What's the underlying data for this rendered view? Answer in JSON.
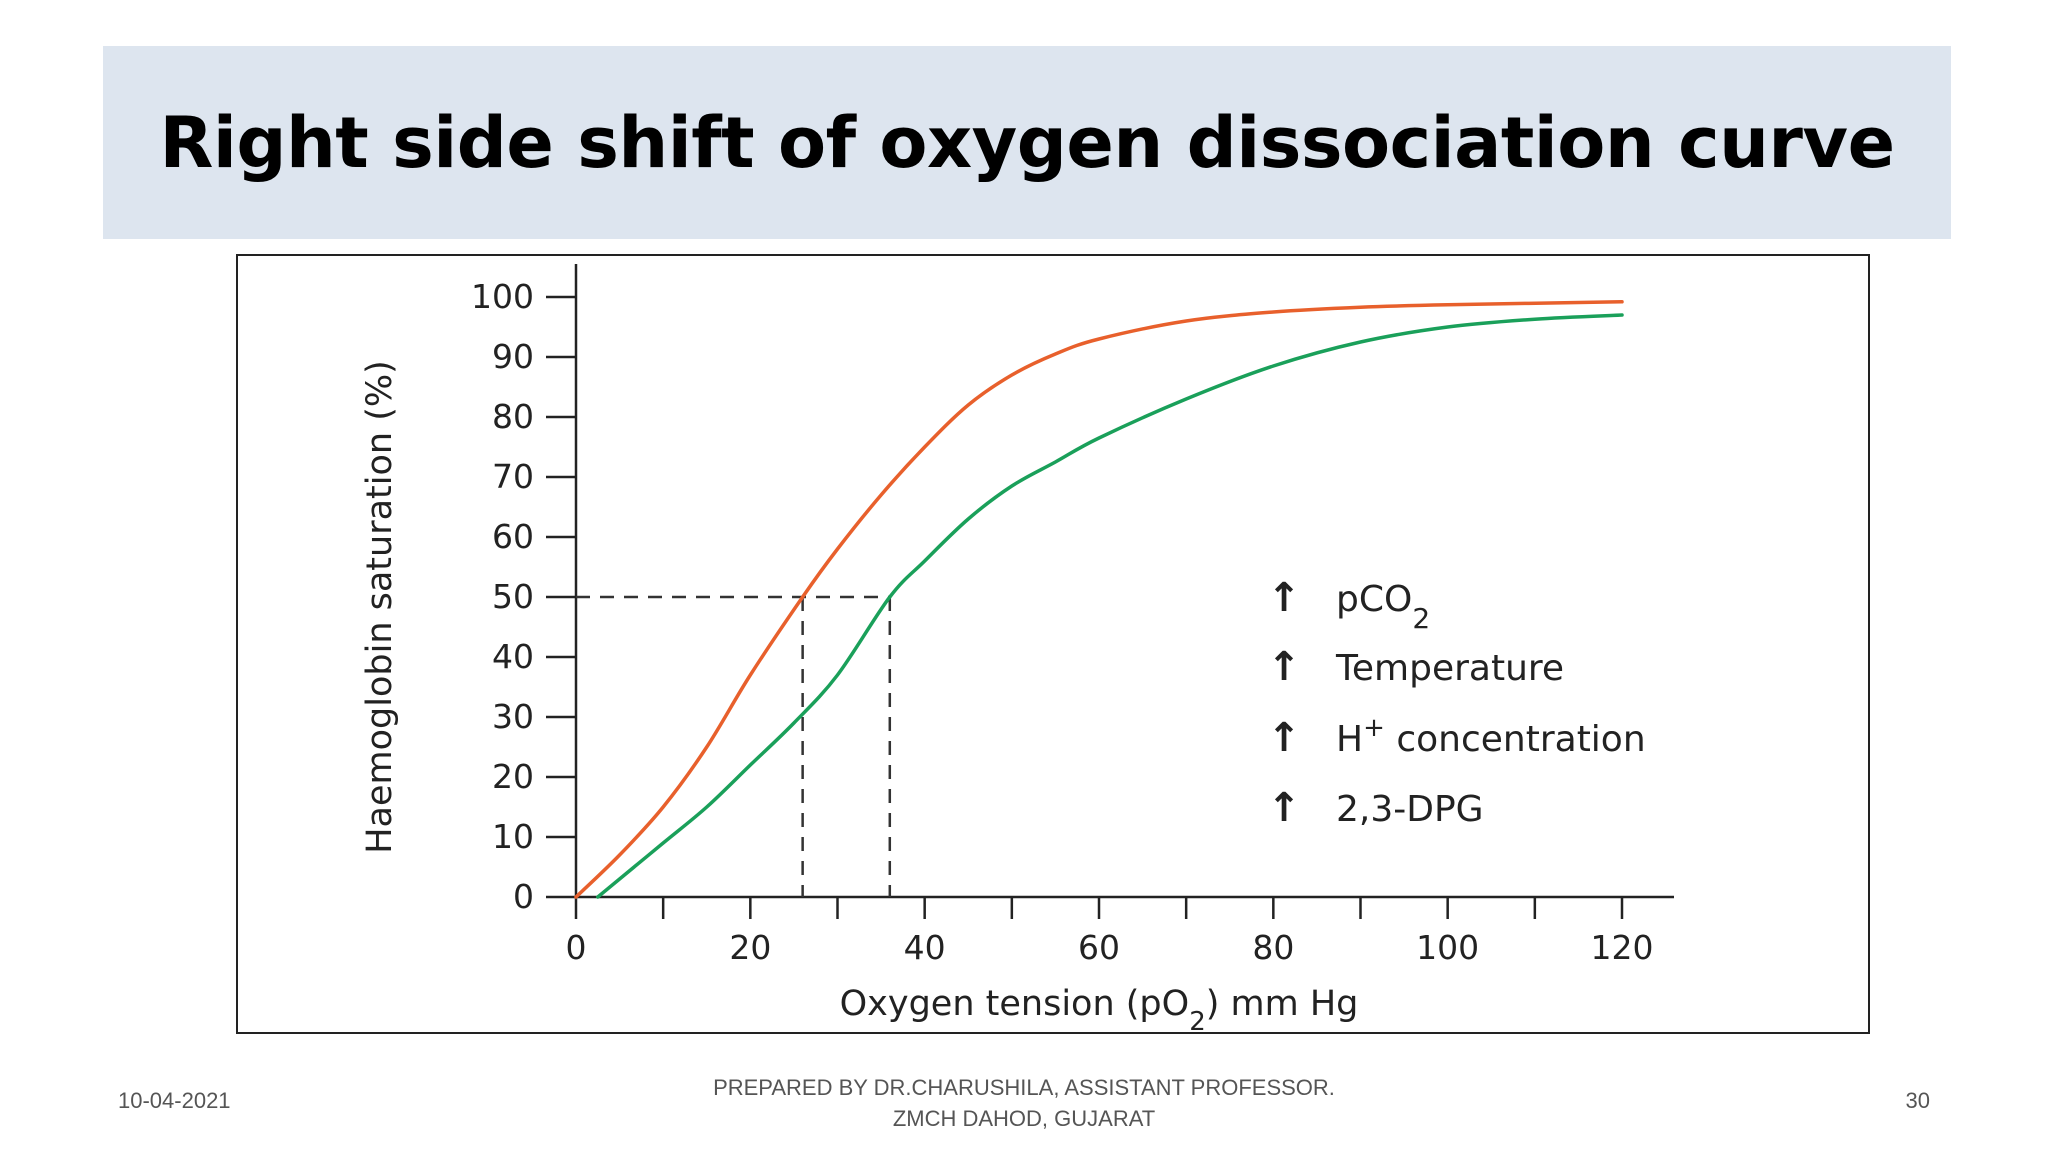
{
  "slide": {
    "title": "Right side shift of oxygen dissociation curve",
    "footer": {
      "date": "10-04-2021",
      "center_line1": "PREPARED BY DR.CHARUSHILA, ASSISTANT PROFESSOR.",
      "center_line2": "ZMCH DAHOD, GUJARAT",
      "page": "30"
    }
  },
  "chart_data": {
    "type": "line",
    "title": "",
    "xlabel": "Oxygen tension (pO2) mm Hg",
    "ylabel": "Haemoglobin saturation (%)",
    "xlim": [
      0,
      120
    ],
    "ylim": [
      0,
      100
    ],
    "x_ticks": [
      0,
      20,
      40,
      60,
      80,
      100,
      120
    ],
    "x_minor_ticks": [
      10,
      30,
      50,
      70,
      90,
      110
    ],
    "y_ticks": [
      0,
      10,
      20,
      30,
      40,
      50,
      60,
      70,
      80,
      90,
      100
    ],
    "grid": false,
    "series": [
      {
        "color": "#e8602c",
        "points": [
          [
            0,
            0
          ],
          [
            5,
            7
          ],
          [
            10,
            15
          ],
          [
            15,
            25
          ],
          [
            20,
            37
          ],
          [
            26,
            50
          ],
          [
            30,
            58
          ],
          [
            35,
            67
          ],
          [
            40,
            75
          ],
          [
            45,
            82
          ],
          [
            50,
            87
          ],
          [
            55,
            90.5
          ],
          [
            60,
            93
          ],
          [
            70,
            96
          ],
          [
            80,
            97.5
          ],
          [
            90,
            98.3
          ],
          [
            100,
            98.7
          ],
          [
            120,
            99.2
          ]
        ]
      },
      {
        "color": "#1aa05a",
        "points": [
          [
            2.5,
            0
          ],
          [
            5,
            3
          ],
          [
            10,
            9
          ],
          [
            15,
            15
          ],
          [
            20,
            22
          ],
          [
            25,
            29
          ],
          [
            30,
            37
          ],
          [
            36,
            50
          ],
          [
            40,
            56
          ],
          [
            45,
            63
          ],
          [
            50,
            68.5
          ],
          [
            55,
            72.5
          ],
          [
            60,
            76.5
          ],
          [
            70,
            83
          ],
          [
            80,
            88.5
          ],
          [
            90,
            92.5
          ],
          [
            100,
            95
          ],
          [
            110,
            96.3
          ],
          [
            120,
            97
          ]
        ]
      }
    ],
    "p50_markers": [
      {
        "x": 26,
        "y": 50
      },
      {
        "x": 36,
        "y": 50
      }
    ],
    "annotations": [
      {
        "arrow": "↑",
        "text": "pCO",
        "sub": "2",
        "sup": ""
      },
      {
        "arrow": "↑",
        "text": "Temperature",
        "sub": "",
        "sup": ""
      },
      {
        "arrow": "↑",
        "text": "H",
        "sub": "",
        "sup": "+",
        "suffix": " concentration"
      },
      {
        "arrow": "↑",
        "text": "2,3-DPG",
        "sub": "",
        "sup": ""
      }
    ]
  }
}
